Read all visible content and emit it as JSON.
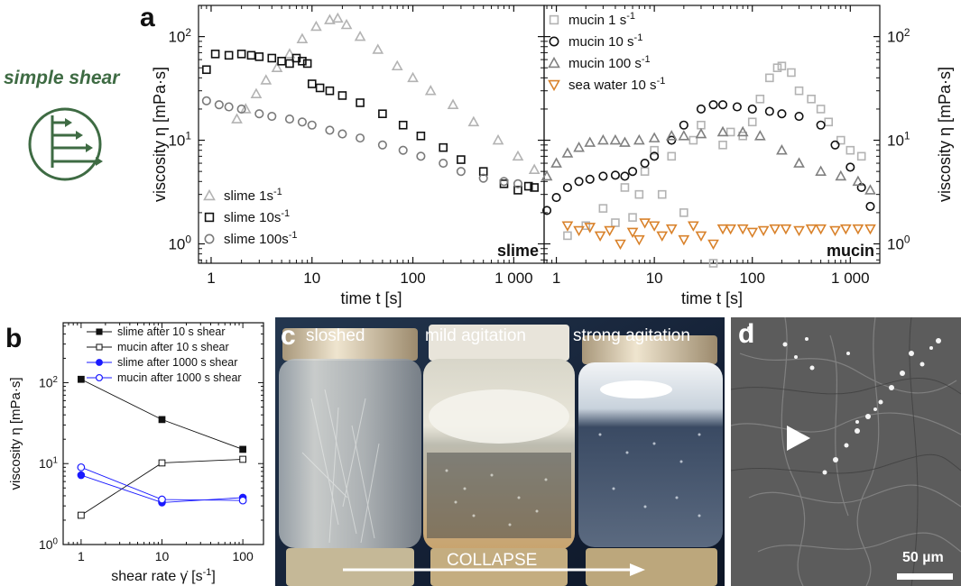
{
  "panel_labels": {
    "a": "a",
    "b": "b",
    "c": "c",
    "d": "d"
  },
  "simple_shear": {
    "title": "simple shear",
    "color": "#3e6b43"
  },
  "chart_data": [
    {
      "id": "slime",
      "type": "scatter",
      "panel_tag": "slime",
      "xlabel": "time t [s]",
      "ylabel": "viscosity η [mPa·s]",
      "xscale": "log",
      "yscale": "log",
      "xlim": [
        0.75,
        2000
      ],
      "ylim": [
        0.65,
        200
      ],
      "xticks": [
        {
          "v": 1,
          "label": "1"
        },
        {
          "v": 10,
          "label": "10"
        },
        {
          "v": 100,
          "label": "100"
        },
        {
          "v": 1000,
          "label": "1 000"
        }
      ],
      "yticks": [
        {
          "v": 1,
          "base": "10",
          "exp": "0"
        },
        {
          "v": 10,
          "base": "10",
          "exp": "1"
        },
        {
          "v": 100,
          "base": "10",
          "exp": "2"
        }
      ],
      "legend_position": "bottom-left",
      "series": [
        {
          "name": "slime 1s",
          "sup": "-1",
          "marker": "triangle",
          "color": "#b3b3b3",
          "x": [
            1.8,
            2.2,
            2.8,
            3.5,
            4.5,
            6,
            8,
            11,
            15,
            18,
            22,
            30,
            45,
            70,
            100,
            150,
            250,
            400,
            700,
            1100,
            1600
          ],
          "y": [
            16,
            20,
            28,
            38,
            50,
            68,
            95,
            125,
            145,
            150,
            130,
            100,
            75,
            52,
            40,
            30,
            22,
            15,
            10,
            7,
            5.2
          ]
        },
        {
          "name": "slime 10s",
          "sup": "-1",
          "marker": "square",
          "color": "#111111",
          "x": [
            0.9,
            1.1,
            1.5,
            2,
            2.5,
            3,
            4,
            5,
            6,
            7,
            8,
            9,
            10,
            12,
            15,
            20,
            30,
            50,
            80,
            120,
            200,
            300,
            500,
            800,
            1100,
            1400,
            1600
          ],
          "y": [
            48,
            68,
            66,
            68,
            66,
            64,
            62,
            58,
            55,
            62,
            58,
            55,
            35,
            32,
            30,
            27,
            23,
            18,
            14,
            11,
            8.5,
            6.5,
            5,
            3.8,
            3.3,
            3.6,
            3.5
          ]
        },
        {
          "name": "slime 100s",
          "sup": "-1",
          "marker": "circle",
          "color": "#7a7a7a",
          "x": [
            0.9,
            1.2,
            1.5,
            2,
            3,
            4,
            6,
            8,
            10,
            15,
            20,
            30,
            50,
            80,
            120,
            200,
            300,
            500,
            800,
            1100
          ],
          "y": [
            24,
            22,
            21,
            20,
            18,
            17,
            16,
            15,
            14,
            12.5,
            11.5,
            10.5,
            9,
            8,
            7,
            6,
            5,
            4.3,
            4,
            3.8
          ]
        }
      ]
    },
    {
      "id": "mucin",
      "type": "scatter",
      "panel_tag": "mucin",
      "xlabel": "time t [s]",
      "ylabel": "viscosity η [mPa·s]",
      "xscale": "log",
      "yscale": "log",
      "xlim": [
        0.75,
        2000
      ],
      "ylim": [
        0.65,
        200
      ],
      "xticks": [
        {
          "v": 1,
          "label": "1"
        },
        {
          "v": 10,
          "label": "10"
        },
        {
          "v": 100,
          "label": "100"
        },
        {
          "v": 1000,
          "label": "1 000"
        }
      ],
      "yticks": [
        {
          "v": 1,
          "base": "10",
          "exp": "0"
        },
        {
          "v": 10,
          "base": "10",
          "exp": "1"
        },
        {
          "v": 100,
          "base": "10",
          "exp": "2"
        }
      ],
      "legend_position": "top-left",
      "series": [
        {
          "name": "mucin 1 s",
          "sup": "-1",
          "marker": "square",
          "color": "#b3b3b3",
          "x": [
            1.3,
            2,
            3,
            4,
            5,
            6,
            7,
            8,
            10,
            12,
            15,
            20,
            25,
            30,
            40,
            50,
            60,
            80,
            100,
            120,
            150,
            180,
            200,
            250,
            300,
            400,
            500,
            600,
            800,
            1000,
            1300
          ],
          "y": [
            1.2,
            1.5,
            2.2,
            1.6,
            3.5,
            1.8,
            3.0,
            5.0,
            8,
            3,
            7,
            2,
            10,
            14,
            0.65,
            9,
            12,
            11,
            15,
            25,
            40,
            50,
            52,
            45,
            30,
            25,
            20,
            15,
            10,
            8,
            7
          ]
        },
        {
          "name": "mucin 10 s",
          "sup": "-1",
          "marker": "circle",
          "color": "#111111",
          "x": [
            0.8,
            1,
            1.3,
            1.7,
            2.2,
            3,
            4,
            5,
            6,
            8,
            10,
            15,
            20,
            30,
            40,
            50,
            70,
            100,
            150,
            200,
            300,
            500,
            700,
            1000,
            1300,
            1600
          ],
          "y": [
            2.1,
            2.8,
            3.5,
            4.0,
            4.2,
            4.5,
            4.6,
            4.5,
            5,
            6,
            7,
            10,
            14,
            20,
            22,
            22,
            21,
            20,
            19,
            18,
            17,
            14,
            9,
            5.5,
            3.5,
            2.3
          ]
        },
        {
          "name": "mucin 100 s",
          "sup": "-1",
          "marker": "triangle",
          "color": "#808080",
          "x": [
            0.8,
            1,
            1.3,
            1.7,
            2.2,
            3,
            4,
            5,
            7,
            10,
            15,
            20,
            30,
            50,
            80,
            120,
            200,
            300,
            500,
            800,
            1200,
            1600
          ],
          "y": [
            4.5,
            6,
            7.5,
            8.5,
            9.5,
            10,
            10,
            9.5,
            10,
            10.5,
            11,
            11,
            11.5,
            12,
            12,
            11,
            8,
            6,
            5,
            4.5,
            4,
            3.3
          ]
        },
        {
          "name": "sea water 10 s",
          "sup": "-1",
          "marker": "down-triangle",
          "color": "#d9822b",
          "x": [
            1.3,
            1.7,
            2.2,
            2.8,
            3.5,
            4.5,
            6,
            7,
            8,
            10,
            12,
            15,
            20,
            25,
            30,
            40,
            50,
            60,
            80,
            100,
            130,
            170,
            220,
            300,
            400,
            500,
            700,
            900,
            1200,
            1600
          ],
          "y": [
            1.5,
            1.35,
            1.45,
            1.2,
            1.35,
            1.0,
            1.3,
            1.1,
            1.6,
            1.5,
            1.2,
            1.4,
            1.1,
            1.5,
            1.2,
            1.0,
            1.4,
            1.4,
            1.4,
            1.3,
            1.35,
            1.4,
            1.4,
            1.35,
            1.4,
            1.4,
            1.35,
            1.4,
            1.4,
            1.4
          ]
        }
      ]
    },
    {
      "id": "shear-rate",
      "type": "line",
      "xlabel_main": "shear rate",
      "xlabel_symbol": "γ̇",
      "xlabel_unit": "[s",
      "xlabel_sup": "-1",
      "xlabel_close": "]",
      "ylabel": "viscosity η [mPa·s]",
      "xscale": "log",
      "yscale": "log",
      "xlim": [
        0.6,
        180
      ],
      "ylim": [
        1,
        550
      ],
      "xticks": [
        {
          "v": 1,
          "label": "1"
        },
        {
          "v": 10,
          "label": "10"
        },
        {
          "v": 100,
          "label": "100"
        }
      ],
      "yticks": [
        {
          "v": 1,
          "base": "10",
          "exp": "0"
        },
        {
          "v": 10,
          "base": "10",
          "exp": "1"
        },
        {
          "v": 100,
          "base": "10",
          "exp": "2"
        }
      ],
      "legend_position": "top-right",
      "x": [
        1,
        10,
        100
      ],
      "series": [
        {
          "name": "slime after 10 s shear",
          "marker": "square-filled",
          "color": "#111111",
          "values": [
            110,
            35,
            15
          ]
        },
        {
          "name": "mucin after 10 s shear",
          "marker": "square-open",
          "color": "#111111",
          "values": [
            2.3,
            10.2,
            11.3
          ]
        },
        {
          "name": "slime after 1000 s shear",
          "marker": "circle-filled",
          "color": "#1a1aff",
          "values": [
            7.2,
            3.3,
            3.8
          ]
        },
        {
          "name": "mucin after 1000 s shear",
          "marker": "circle-open",
          "color": "#1a1aff",
          "values": [
            9.0,
            3.6,
            3.5
          ]
        }
      ]
    }
  ],
  "panel_c": {
    "labels": [
      "sloshed",
      "mild agitation",
      "strong agitation"
    ],
    "arrow_label": "COLLAPSE"
  },
  "panel_d": {
    "scale_bar": "50 µm"
  }
}
